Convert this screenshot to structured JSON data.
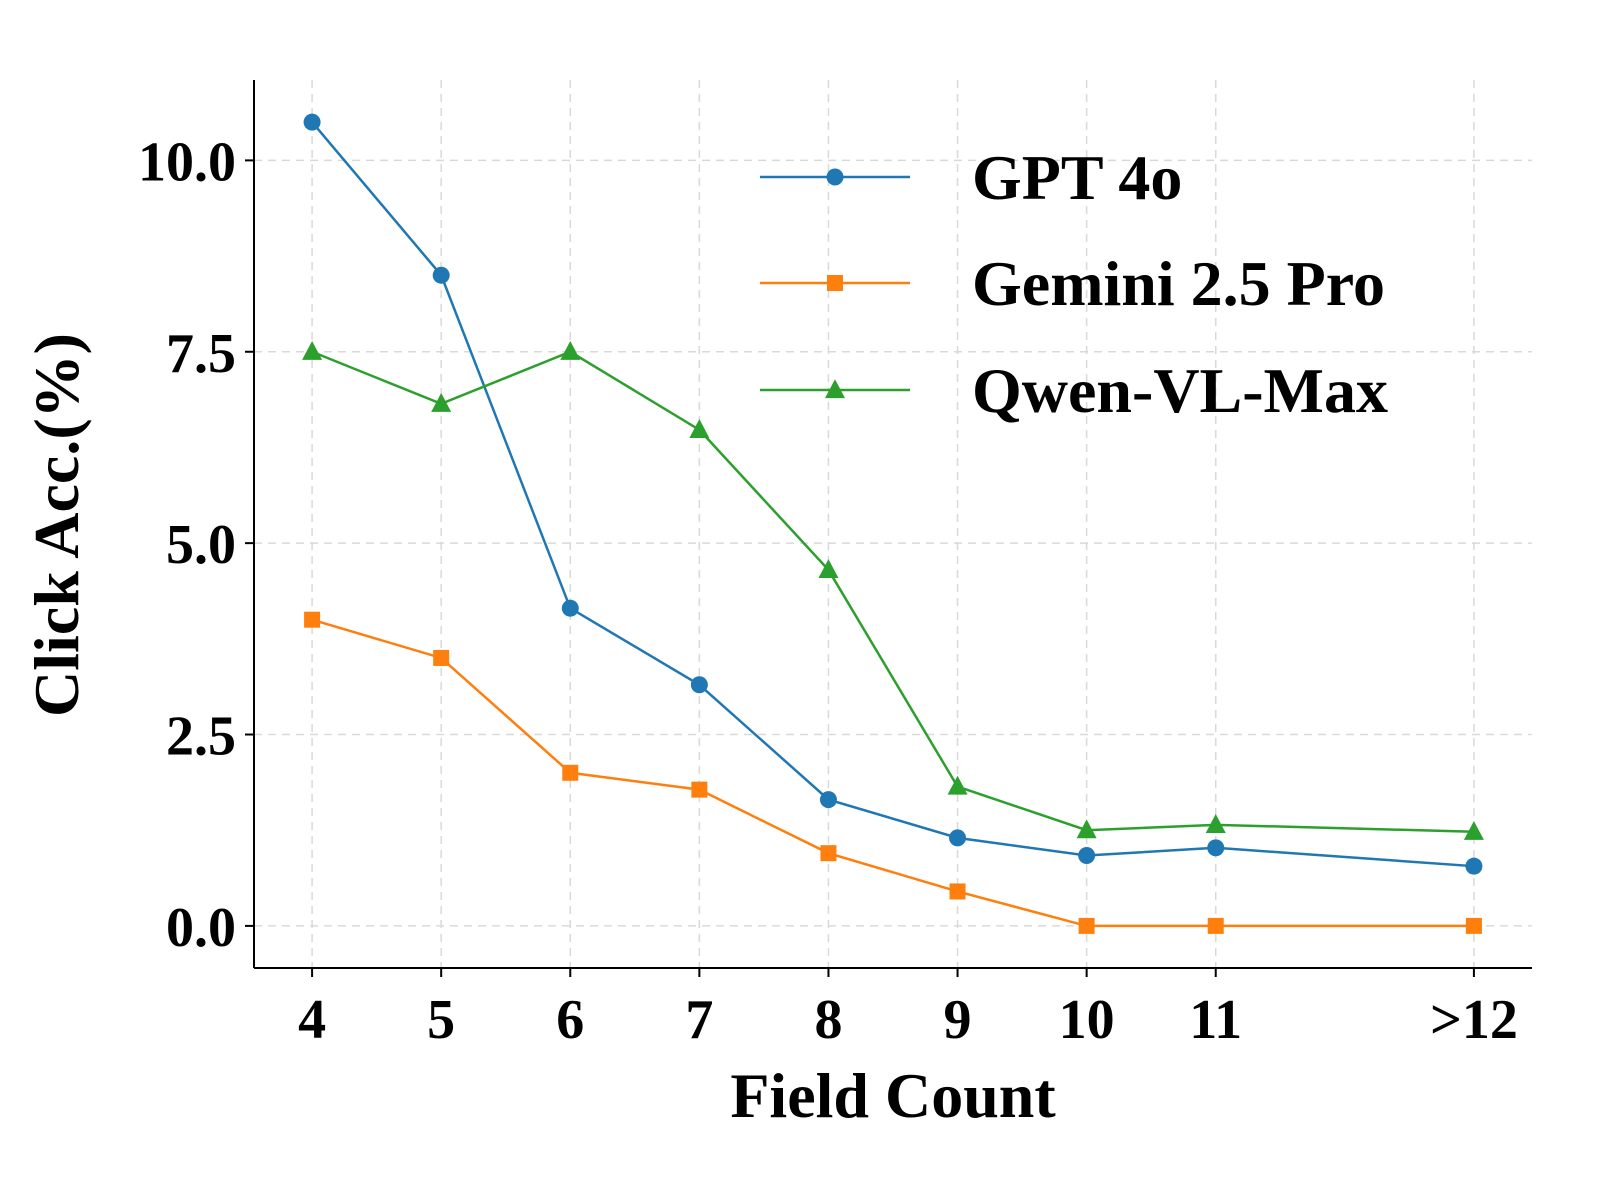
{
  "chart_data": {
    "type": "line",
    "title": "",
    "xlabel": "Field Count",
    "ylabel": "Click Acc.(%)",
    "categories": [
      "4",
      "5",
      "6",
      "7",
      "8",
      "9",
      "10",
      "11",
      ">12"
    ],
    "x": [
      4,
      5,
      6,
      7,
      8,
      9,
      10,
      11,
      13
    ],
    "ylim": [
      -0.55,
      11.05
    ],
    "xlim": [
      3.55,
      13.45
    ],
    "yticks": [
      0.0,
      2.5,
      5.0,
      7.5,
      10.0
    ],
    "ytick_labels": [
      "0.0",
      "2.5",
      "5.0",
      "7.5",
      "10.0"
    ],
    "grid": true,
    "legend_position": "top-right",
    "series": [
      {
        "name": "GPT 4o",
        "color": "#1f77b4",
        "marker": "circle",
        "values": [
          10.5,
          8.5,
          4.15,
          3.15,
          1.65,
          1.15,
          0.92,
          1.02,
          0.78
        ]
      },
      {
        "name": "Gemini 2.5 Pro",
        "color": "#ff7f0e",
        "marker": "square",
        "values": [
          4.0,
          3.5,
          2.0,
          1.78,
          0.95,
          0.45,
          0.0,
          0.0,
          0.0
        ]
      },
      {
        "name": "Qwen-VL-Max",
        "color": "#2ca02c",
        "marker": "triangle",
        "values": [
          7.5,
          6.82,
          7.5,
          6.48,
          4.65,
          1.82,
          1.25,
          1.32,
          1.23
        ]
      }
    ]
  }
}
